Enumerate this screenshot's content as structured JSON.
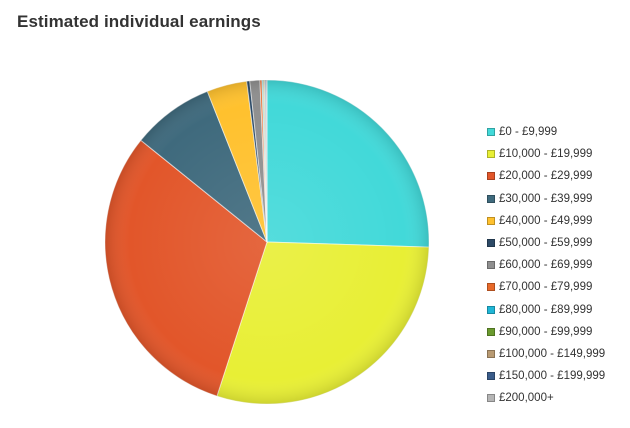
{
  "chart_data": {
    "type": "pie",
    "title": "Estimated individual earnings",
    "categories": [
      "£0 - £9,999",
      "£10,000 - £19,999",
      "£20,000 - £29,999",
      "£30,000 - £39,999",
      "£40,000 - £49,999",
      "£50,000 - £59,999",
      "£60,000 - £69,999",
      "£70,000 - £79,999",
      "£80,000 - £89,999",
      "£90,000 - £99,999",
      "£100,000 - £149,999",
      "£150,000 - £199,999",
      "£200,000+"
    ],
    "values": [
      25.5,
      29.5,
      30.8,
      8.2,
      4.0,
      0.3,
      1.0,
      0.2,
      0.1,
      0.1,
      0.1,
      0.1,
      0.1
    ],
    "colors": [
      "#42d9d9",
      "#e8ef35",
      "#e2562a",
      "#3f6a7d",
      "#ffc12e",
      "#2c4a66",
      "#8f8f8f",
      "#e86a2a",
      "#1fb6d6",
      "#6a9a2e",
      "#b89a72",
      "#3a5c8a",
      "#b5b5b5"
    ],
    "legend_position": "right"
  }
}
